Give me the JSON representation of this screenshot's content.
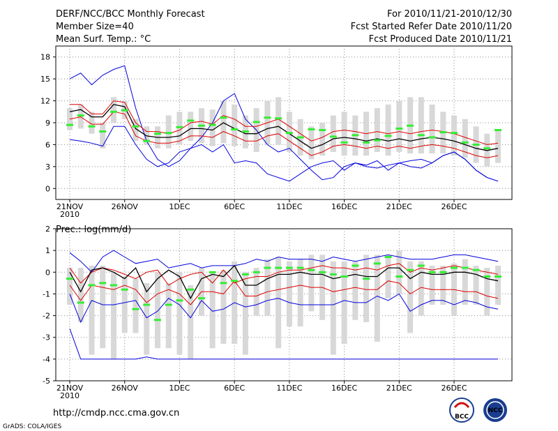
{
  "header": {
    "left_line1": "DERF/NCC/BCC Monthly Forecast",
    "left_line2": "Member Size=40",
    "left_line3": "Mean Surf. Temp.: °C",
    "right_line1": "For 2010/11/21-2010/12/30",
    "right_line2": "Fcst Started Refer Date 2010/11/20",
    "right_line3": "Fcst Produced Date 2010/11/21"
  },
  "footer": {
    "url": "http://cmdp.ncc.cma.gov.cn",
    "credit": "GrADS: COLA/IGES",
    "logo_bcc": "BCC",
    "logo_ncc": "NCC"
  },
  "colors": {
    "box": "#d8d8d8",
    "max": "#0000dd",
    "min": "#0000dd",
    "upper": "#dd0000",
    "lower": "#dd0000",
    "mean": "#000000",
    "green": "#33ee33"
  },
  "chart_data": [
    {
      "type": "line",
      "title": "Mean Surf. Temp.: °C",
      "x_tick_labels": [
        "21NOV",
        "26NOV",
        "1DEC",
        "6DEC",
        "11DEC",
        "16DEC",
        "21DEC",
        "26DEC"
      ],
      "x_year_label": "2010",
      "xlim": [
        1,
        40
      ],
      "ylim": [
        -1.5,
        19.5
      ],
      "yticks": [
        0,
        3,
        6,
        9,
        12,
        15,
        18
      ],
      "grid": true,
      "series": [
        {
          "name": "max",
          "values": [
            15.0,
            15.8,
            14.2,
            15.5,
            16.3,
            16.8,
            11.0,
            6.5,
            4.0,
            3.0,
            3.8,
            5.5,
            7.0,
            9.0,
            12.0,
            13.0,
            9.5,
            8.0,
            6.0,
            5.0,
            5.5,
            4.0,
            2.5,
            1.2,
            1.5,
            3.0,
            3.5,
            3.0,
            2.8,
            3.2,
            3.5,
            3.0,
            2.8,
            3.5,
            4.5,
            5.0,
            4.0,
            2.5,
            1.5,
            1.0
          ]
        },
        {
          "name": "upper",
          "values": [
            11.5,
            11.5,
            10.2,
            10.2,
            12.0,
            11.8,
            9.0,
            7.8,
            7.8,
            7.5,
            8.0,
            9.0,
            9.2,
            8.8,
            10.0,
            9.5,
            8.5,
            8.5,
            9.0,
            9.5,
            8.5,
            7.5,
            6.5,
            7.0,
            7.8,
            8.0,
            7.8,
            7.5,
            7.8,
            7.5,
            7.8,
            7.5,
            7.8,
            8.0,
            7.8,
            7.5,
            7.0,
            6.5,
            6.0,
            6.2
          ]
        },
        {
          "name": "mean",
          "values": [
            10.5,
            10.8,
            9.8,
            9.8,
            11.5,
            11.2,
            8.2,
            7.2,
            7.0,
            7.0,
            7.2,
            8.2,
            8.2,
            8.0,
            9.0,
            8.2,
            7.5,
            7.5,
            8.2,
            8.5,
            7.5,
            6.5,
            5.5,
            6.0,
            6.8,
            7.0,
            6.8,
            6.5,
            6.8,
            6.5,
            6.8,
            6.5,
            6.8,
            7.0,
            6.8,
            6.5,
            6.0,
            5.5,
            5.2,
            5.5
          ]
        },
        {
          "name": "lower",
          "values": [
            9.5,
            9.8,
            8.8,
            8.8,
            10.5,
            10.2,
            7.2,
            6.5,
            6.2,
            6.2,
            6.5,
            7.2,
            7.2,
            7.0,
            7.8,
            7.2,
            6.5,
            6.5,
            7.2,
            7.5,
            6.5,
            5.5,
            4.5,
            5.0,
            5.8,
            6.0,
            5.8,
            5.5,
            5.8,
            5.5,
            5.8,
            5.5,
            5.8,
            6.0,
            5.8,
            5.5,
            5.0,
            4.5,
            4.2,
            4.5
          ]
        },
        {
          "name": "min",
          "values": [
            6.7,
            6.5,
            6.2,
            5.8,
            8.5,
            8.5,
            6.0,
            4.0,
            3.0,
            3.5,
            5.0,
            5.5,
            6.0,
            5.0,
            6.0,
            3.5,
            3.8,
            3.5,
            2.0,
            1.5,
            1.0,
            2.0,
            3.0,
            3.5,
            3.8,
            2.5,
            3.5,
            3.2,
            3.8,
            2.5,
            3.5,
            3.8,
            4.0,
            3.5,
            4.5,
            5.0,
            4.0,
            2.5,
            1.5,
            1.0
          ]
        },
        {
          "name": "box_low",
          "values": [
            8.0,
            8.2,
            7.5,
            5.5,
            9.0,
            9.5,
            6.5,
            6.0,
            5.5,
            5.5,
            6.0,
            6.5,
            6.2,
            5.8,
            6.2,
            5.8,
            5.5,
            5.0,
            6.0,
            6.0,
            5.0,
            4.5,
            4.0,
            4.5,
            5.0,
            4.5,
            4.5,
            4.5,
            5.0,
            4.5,
            5.0,
            4.8,
            4.8,
            4.8,
            4.8,
            4.5,
            4.2,
            3.5,
            3.0,
            3.5
          ]
        },
        {
          "name": "box_high",
          "values": [
            11.0,
            11.5,
            10.5,
            9.0,
            12.5,
            12.0,
            9.5,
            8.5,
            8.5,
            10.0,
            10.5,
            10.5,
            11.0,
            10.8,
            12.0,
            11.5,
            10.0,
            11.0,
            12.0,
            12.5,
            10.5,
            9.5,
            8.5,
            9.0,
            10.0,
            10.5,
            10.0,
            10.5,
            11.0,
            11.5,
            12.0,
            12.5,
            12.5,
            11.5,
            10.5,
            10.0,
            9.5,
            8.5,
            7.5,
            8.0
          ]
        },
        {
          "name": "green",
          "values": [
            8.7,
            10.0,
            8.5,
            7.8,
            10.5,
            10.7,
            8.5,
            6.5,
            7.5,
            7.6,
            8.4,
            9.3,
            8.6,
            8.7,
            9.7,
            8.1,
            7.8,
            9.1,
            9.7,
            9.6,
            7.6,
            7.0,
            8.1,
            8.0,
            7.1,
            6.3,
            7.3,
            6.3,
            6.6,
            7.2,
            8.2,
            8.6,
            7.3,
            7.0,
            7.7,
            7.6,
            6.3,
            6.0,
            5.5,
            8.0
          ]
        }
      ]
    },
    {
      "type": "line",
      "title": "Prec.: log(mm/d)",
      "x_tick_labels": [
        "21NOV",
        "26NOV",
        "1DEC",
        "6DEC",
        "11DEC",
        "16DEC",
        "21DEC",
        "26DEC"
      ],
      "x_year_label": "2010",
      "xlim": [
        1,
        40
      ],
      "ylim": [
        -5,
        2
      ],
      "yticks": [
        -5,
        -4,
        -3,
        -2,
        -1,
        0,
        1,
        2
      ],
      "grid": true,
      "series": [
        {
          "name": "max",
          "values": [
            0.9,
            0.5,
            0.0,
            0.7,
            1.0,
            0.7,
            0.4,
            0.5,
            0.6,
            0.2,
            0.3,
            0.4,
            0.2,
            0.3,
            0.3,
            0.3,
            0.4,
            0.6,
            0.5,
            0.7,
            0.6,
            0.6,
            0.6,
            0.5,
            0.7,
            0.6,
            0.5,
            0.6,
            0.7,
            0.8,
            0.7,
            0.6,
            0.6,
            0.6,
            0.7,
            0.8,
            0.8,
            0.7,
            0.6,
            0.5
          ]
        },
        {
          "name": "upper",
          "values": [
            0.2,
            -0.5,
            0.0,
            0.2,
            0.1,
            -0.1,
            -0.3,
            0.0,
            0.1,
            -0.6,
            -0.3,
            -0.1,
            0.0,
            -0.5,
            0.1,
            -0.5,
            -0.3,
            -0.2,
            -0.2,
            0.0,
            0.1,
            0.1,
            0.2,
            0.3,
            0.2,
            0.2,
            0.1,
            0.2,
            0.1,
            0.3,
            0.4,
            0.0,
            0.2,
            0.1,
            0.2,
            0.3,
            0.2,
            0.1,
            0.0,
            -0.1
          ]
        },
        {
          "name": "mean",
          "values": [
            0.0,
            -0.9,
            0.1,
            0.2,
            0.0,
            -0.3,
            0.2,
            -0.9,
            -0.3,
            0.1,
            -0.2,
            -1.2,
            -0.3,
            -0.1,
            -0.2,
            0.3,
            -0.6,
            -0.6,
            -0.3,
            -0.1,
            -0.1,
            0.0,
            -0.1,
            -0.1,
            -0.3,
            -0.2,
            -0.1,
            -0.2,
            -0.2,
            0.2,
            0.2,
            -0.3,
            0.0,
            -0.1,
            -0.1,
            0.0,
            0.0,
            -0.1,
            -0.3,
            -0.4
          ]
        },
        {
          "name": "lower",
          "values": [
            -0.6,
            -1.3,
            -0.6,
            -0.7,
            -0.8,
            -0.6,
            -0.8,
            -1.4,
            -1.0,
            -0.8,
            -1.0,
            -1.5,
            -0.9,
            -0.9,
            -1.0,
            -0.4,
            -1.1,
            -1.1,
            -0.9,
            -0.8,
            -0.7,
            -0.6,
            -0.7,
            -0.7,
            -0.9,
            -0.8,
            -0.7,
            -0.8,
            -0.8,
            -0.4,
            -0.5,
            -1.0,
            -0.7,
            -0.8,
            -0.8,
            -0.8,
            -0.9,
            -0.9,
            -1.1,
            -1.2
          ]
        },
        {
          "name": "min",
          "values": [
            -1.0,
            -2.3,
            -1.3,
            -1.5,
            -1.5,
            -1.4,
            -1.3,
            -2.1,
            -1.8,
            -1.2,
            -1.5,
            -2.1,
            -1.3,
            -1.8,
            -1.7,
            -1.4,
            -1.6,
            -1.5,
            -1.3,
            -1.2,
            -1.4,
            -1.5,
            -1.5,
            -1.5,
            -1.5,
            -1.3,
            -1.4,
            -1.4,
            -1.1,
            -1.3,
            -1.0,
            -1.8,
            -1.5,
            -1.3,
            -1.3,
            -1.5,
            -1.3,
            -1.4,
            -1.6,
            -1.7
          ]
        },
        {
          "name": "floor",
          "values": [
            -2.6,
            -4.0,
            -4.0,
            -4.0,
            -4.0,
            -4.0,
            -4.0,
            -3.9,
            -4.0,
            -4.0,
            -4.0,
            -4.0,
            -4.0,
            -4.0,
            -4.0,
            -4.0,
            -4.0,
            -4.0,
            -4.0,
            -4.0,
            -4.0,
            -4.0,
            -4.0,
            -4.0,
            -4.0,
            -4.0,
            -4.0,
            -4.0,
            -4.0,
            -4.0,
            -4.0,
            -4.0,
            -4.0,
            -4.0,
            -4.0,
            -4.0,
            -4.0,
            -4.0,
            -4.0,
            -4.0
          ]
        },
        {
          "name": "box_low",
          "values": [
            -1.5,
            -2.3,
            -3.8,
            -3.5,
            -4.0,
            -2.8,
            -2.8,
            -3.8,
            -3.5,
            -3.5,
            -3.8,
            -4.0,
            -2.0,
            -3.5,
            -3.3,
            -3.3,
            -3.8,
            -2.0,
            -2.0,
            -3.5,
            -2.5,
            -2.5,
            -1.8,
            -2.2,
            -3.8,
            -3.3,
            -2.2,
            -2.3,
            -3.2,
            -1.2,
            -1.0,
            -2.8,
            -2.0,
            -1.5,
            -1.5,
            -2.0,
            -1.5,
            -1.5,
            -2.0,
            -1.5
          ]
        },
        {
          "name": "box_high",
          "values": [
            0.2,
            0.2,
            0.3,
            0.3,
            0.0,
            -0.2,
            -0.3,
            -0.5,
            0.0,
            -0.5,
            0.0,
            -0.6,
            0.2,
            0.0,
            0.1,
            0.5,
            0.0,
            0.2,
            0.6,
            0.7,
            0.5,
            0.6,
            0.8,
            0.8,
            0.5,
            0.5,
            0.5,
            0.8,
            0.8,
            0.8,
            1.0,
            0.5,
            0.5,
            0.3,
            0.3,
            0.4,
            0.6,
            0.3,
            0.2,
            0.3
          ]
        },
        {
          "name": "green",
          "values": [
            -0.3,
            -1.4,
            -0.6,
            -0.5,
            -0.6,
            -0.8,
            -1.7,
            -1.5,
            -2.2,
            -1.5,
            -1.3,
            -0.8,
            -1.2,
            0.0,
            -0.5,
            -0.4,
            -0.1,
            0.0,
            0.2,
            0.2,
            0.2,
            0.2,
            0.1,
            0.0,
            -0.1,
            -0.2,
            0.3,
            -0.3,
            0.4,
            0.7,
            -0.2,
            0.1,
            0.3,
            0.0,
            0.0,
            0.2,
            0.2,
            0.1,
            -0.2,
            -0.2
          ]
        }
      ]
    }
  ]
}
